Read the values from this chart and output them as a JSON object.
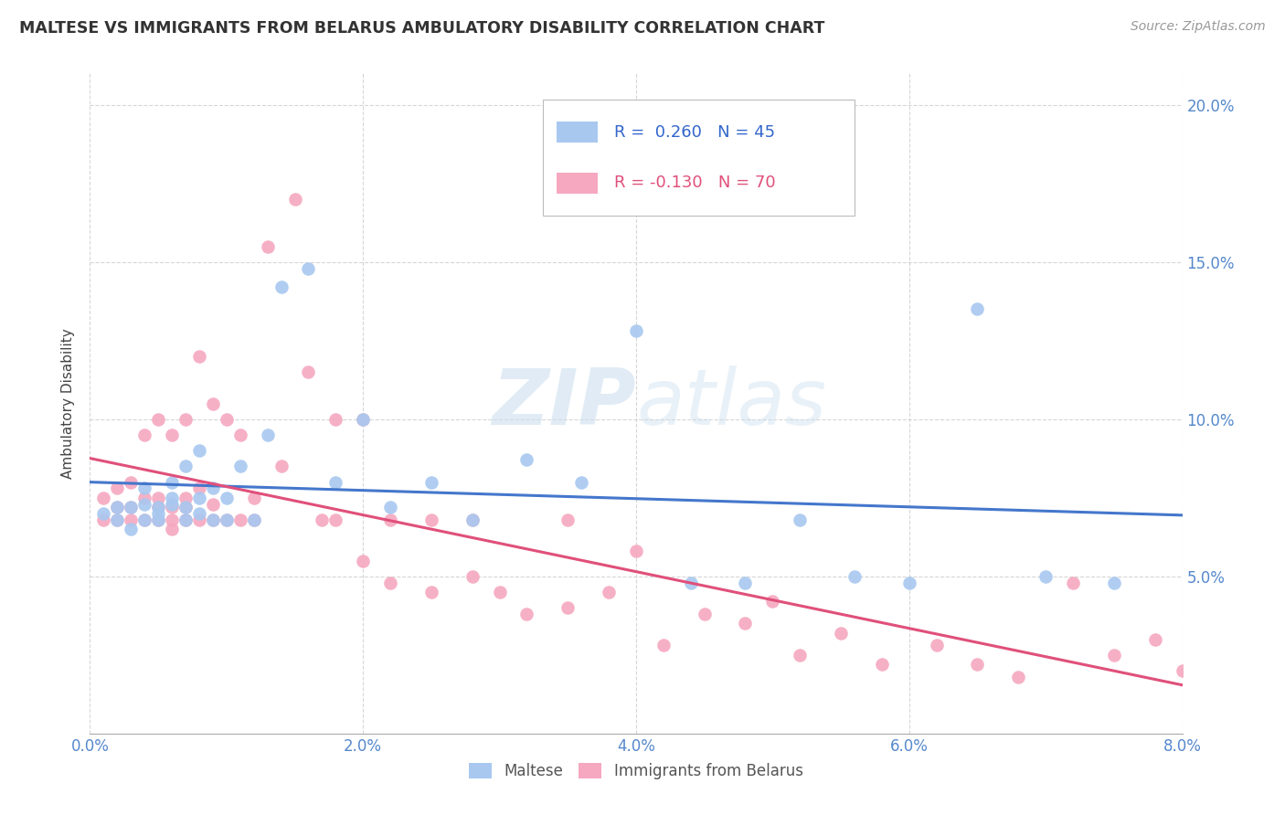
{
  "title": "MALTESE VS IMMIGRANTS FROM BELARUS AMBULATORY DISABILITY CORRELATION CHART",
  "source": "Source: ZipAtlas.com",
  "ylabel": "Ambulatory Disability",
  "xmin": 0.0,
  "xmax": 0.08,
  "ymin": 0.0,
  "ymax": 0.21,
  "maltese_R": 0.26,
  "maltese_N": 45,
  "belarus_R": -0.13,
  "belarus_N": 70,
  "maltese_color": "#A8C8F0",
  "belarus_color": "#F5A8C0",
  "maltese_line_color": "#4477CC",
  "belarus_line_color": "#E0507A",
  "watermark_color": "#C8DCEE",
  "maltese_x": [
    0.001,
    0.002,
    0.002,
    0.003,
    0.003,
    0.004,
    0.004,
    0.004,
    0.005,
    0.005,
    0.005,
    0.006,
    0.006,
    0.006,
    0.007,
    0.007,
    0.007,
    0.008,
    0.008,
    0.008,
    0.009,
    0.009,
    0.01,
    0.01,
    0.011,
    0.012,
    0.013,
    0.014,
    0.016,
    0.018,
    0.02,
    0.022,
    0.025,
    0.028,
    0.032,
    0.036,
    0.04,
    0.044,
    0.048,
    0.052,
    0.056,
    0.06,
    0.065,
    0.07,
    0.075
  ],
  "maltese_y": [
    0.07,
    0.068,
    0.072,
    0.065,
    0.072,
    0.068,
    0.073,
    0.078,
    0.07,
    0.072,
    0.068,
    0.075,
    0.073,
    0.08,
    0.068,
    0.072,
    0.085,
    0.07,
    0.075,
    0.09,
    0.068,
    0.078,
    0.075,
    0.068,
    0.085,
    0.068,
    0.095,
    0.142,
    0.148,
    0.08,
    0.1,
    0.072,
    0.08,
    0.068,
    0.087,
    0.08,
    0.128,
    0.048,
    0.048,
    0.068,
    0.05,
    0.048,
    0.135,
    0.05,
    0.048
  ],
  "belarus_x": [
    0.001,
    0.001,
    0.002,
    0.002,
    0.002,
    0.003,
    0.003,
    0.003,
    0.004,
    0.004,
    0.004,
    0.005,
    0.005,
    0.005,
    0.005,
    0.006,
    0.006,
    0.006,
    0.006,
    0.007,
    0.007,
    0.007,
    0.007,
    0.008,
    0.008,
    0.008,
    0.009,
    0.009,
    0.009,
    0.01,
    0.01,
    0.011,
    0.011,
    0.012,
    0.012,
    0.013,
    0.014,
    0.015,
    0.016,
    0.017,
    0.018,
    0.018,
    0.02,
    0.02,
    0.022,
    0.022,
    0.025,
    0.025,
    0.028,
    0.028,
    0.03,
    0.032,
    0.035,
    0.035,
    0.038,
    0.04,
    0.042,
    0.045,
    0.048,
    0.05,
    0.052,
    0.055,
    0.058,
    0.062,
    0.065,
    0.068,
    0.072,
    0.075,
    0.078,
    0.08
  ],
  "belarus_y": [
    0.068,
    0.075,
    0.072,
    0.068,
    0.078,
    0.068,
    0.072,
    0.08,
    0.068,
    0.075,
    0.095,
    0.068,
    0.072,
    0.075,
    0.1,
    0.065,
    0.068,
    0.072,
    0.095,
    0.068,
    0.072,
    0.075,
    0.1,
    0.068,
    0.078,
    0.12,
    0.068,
    0.073,
    0.105,
    0.068,
    0.1,
    0.068,
    0.095,
    0.068,
    0.075,
    0.155,
    0.085,
    0.17,
    0.115,
    0.068,
    0.068,
    0.1,
    0.055,
    0.1,
    0.048,
    0.068,
    0.045,
    0.068,
    0.05,
    0.068,
    0.045,
    0.038,
    0.04,
    0.068,
    0.045,
    0.058,
    0.028,
    0.038,
    0.035,
    0.042,
    0.025,
    0.032,
    0.022,
    0.028,
    0.022,
    0.018,
    0.048,
    0.025,
    0.03,
    0.02
  ]
}
